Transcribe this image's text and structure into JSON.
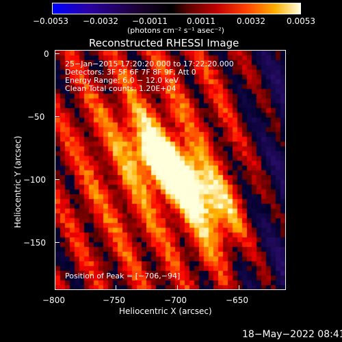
{
  "colorbar": {
    "ticks": [
      "−0.0053",
      "−0.0032",
      "−0.0011",
      "0.0011",
      "0.0032",
      "0.0053"
    ],
    "unit": "(photons cm⁻² s⁻¹ asec⁻²)"
  },
  "plot": {
    "title": "Reconstructed RHESSI Image",
    "xlabel": "Heliocentric X (arcsec)",
    "ylabel": "Heliocentric Y (arcsec)",
    "xticks": [
      "−800",
      "−750",
      "−700",
      "−650"
    ],
    "yticks": [
      "0",
      "−50",
      "−100",
      "−150"
    ],
    "info_lines": [
      "25−Jan−2015 17:20:20.000 to 17:22:20.000",
      "Detectors: 3F 5F 6F 7F 8F 9F, Att 0",
      "Energy Range: 6.0 − 12.0 keV",
      "Clean     Total counts: 1.20E+04"
    ],
    "peak_text": "Position of Peak = [−706,−94]"
  },
  "footer": {
    "timestamp": "18−May−2022 08:41"
  },
  "chart_data": {
    "type": "heatmap",
    "title": "Reconstructed RHESSI Image",
    "xlabel": "Heliocentric X (arcsec)",
    "ylabel": "Heliocentric Y (arcsec)",
    "xlim": [
      -802,
      -614
    ],
    "ylim": [
      -190,
      2
    ],
    "colorscale_range": [
      -0.0053,
      0.0053
    ],
    "colorscale_unit": "photons cm^-2 s^-1 asec^-2",
    "peak_position": [
      -706,
      -94
    ],
    "colormap": [
      "#0000ff",
      "#000000",
      "#ff0000",
      "#ffffff"
    ]
  }
}
